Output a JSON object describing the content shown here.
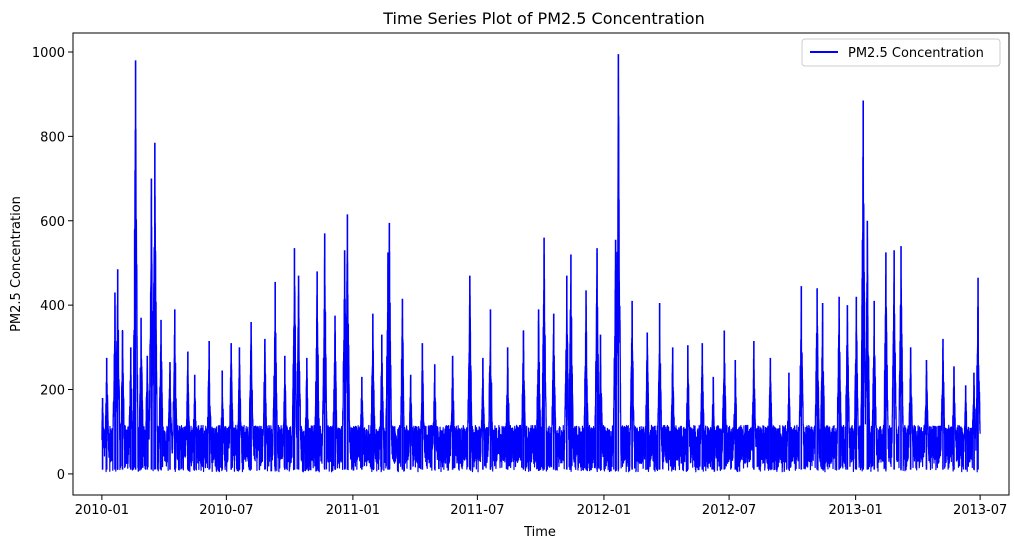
{
  "chart_data": {
    "type": "line",
    "title": "Time Series Plot of PM2.5 Concentration",
    "xlabel": "Time",
    "ylabel": "PM2.5 Concentration",
    "xlim": [
      "2009-11-20",
      "2013-08-12"
    ],
    "ylim": [
      -50,
      1045
    ],
    "x_ticks": [
      "2010-01",
      "2010-07",
      "2011-01",
      "2011-07",
      "2012-01",
      "2012-07",
      "2013-01",
      "2013-07"
    ],
    "y_ticks": [
      0,
      200,
      400,
      600,
      800,
      1000
    ],
    "grid": false,
    "legend_position": "top-right",
    "series": [
      {
        "name": "PM2.5 Concentration",
        "color": "#0000ff",
        "x_start": "2010-01-01",
        "x_end": "2013-07-01",
        "peaks": [
          [
            "2010-01-02",
            180
          ],
          [
            "2010-01-08",
            275
          ],
          [
            "2010-01-20",
            430
          ],
          [
            "2010-01-24",
            485
          ],
          [
            "2010-01-31",
            340
          ],
          [
            "2010-02-12",
            300
          ],
          [
            "2010-02-19",
            980
          ],
          [
            "2010-02-27",
            370
          ],
          [
            "2010-03-08",
            280
          ],
          [
            "2010-03-14",
            700
          ],
          [
            "2010-03-19",
            785
          ],
          [
            "2010-03-28",
            365
          ],
          [
            "2010-04-10",
            265
          ],
          [
            "2010-04-17",
            390
          ],
          [
            "2010-05-06",
            290
          ],
          [
            "2010-05-16",
            235
          ],
          [
            "2010-06-06",
            315
          ],
          [
            "2010-06-25",
            245
          ],
          [
            "2010-07-08",
            310
          ],
          [
            "2010-07-20",
            300
          ],
          [
            "2010-08-06",
            360
          ],
          [
            "2010-08-26",
            320
          ],
          [
            "2010-09-10",
            455
          ],
          [
            "2010-09-24",
            280
          ],
          [
            "2010-10-08",
            535
          ],
          [
            "2010-10-14",
            470
          ],
          [
            "2010-10-26",
            275
          ],
          [
            "2010-11-10",
            480
          ],
          [
            "2010-11-21",
            570
          ],
          [
            "2010-12-06",
            375
          ],
          [
            "2010-12-20",
            530
          ],
          [
            "2010-12-24",
            615
          ],
          [
            "2011-01-14",
            230
          ],
          [
            "2011-01-30",
            380
          ],
          [
            "2011-02-12",
            330
          ],
          [
            "2011-02-21",
            525
          ],
          [
            "2011-02-23",
            595
          ],
          [
            "2011-03-14",
            415
          ],
          [
            "2011-03-26",
            235
          ],
          [
            "2011-04-12",
            310
          ],
          [
            "2011-04-30",
            260
          ],
          [
            "2011-05-26",
            280
          ],
          [
            "2011-06-20",
            470
          ],
          [
            "2011-07-09",
            275
          ],
          [
            "2011-07-20",
            390
          ],
          [
            "2011-08-14",
            300
          ],
          [
            "2011-09-06",
            340
          ],
          [
            "2011-09-28",
            390
          ],
          [
            "2011-10-06",
            560
          ],
          [
            "2011-10-20",
            380
          ],
          [
            "2011-11-08",
            470
          ],
          [
            "2011-11-14",
            520
          ],
          [
            "2011-12-06",
            435
          ],
          [
            "2011-12-22",
            535
          ],
          [
            "2011-12-27",
            330
          ],
          [
            "2012-01-18",
            555
          ],
          [
            "2012-01-22",
            995
          ],
          [
            "2012-02-11",
            410
          ],
          [
            "2012-03-04",
            335
          ],
          [
            "2012-03-22",
            405
          ],
          [
            "2012-04-10",
            300
          ],
          [
            "2012-05-02",
            305
          ],
          [
            "2012-05-23",
            310
          ],
          [
            "2012-06-08",
            230
          ],
          [
            "2012-06-24",
            340
          ],
          [
            "2012-07-10",
            270
          ],
          [
            "2012-08-06",
            315
          ],
          [
            "2012-08-30",
            275
          ],
          [
            "2012-09-26",
            240
          ],
          [
            "2012-10-14",
            445
          ],
          [
            "2012-11-06",
            440
          ],
          [
            "2012-11-14",
            405
          ],
          [
            "2012-12-08",
            420
          ],
          [
            "2012-12-20",
            400
          ],
          [
            "2013-01-02",
            420
          ],
          [
            "2013-01-12",
            885
          ],
          [
            "2013-01-18",
            600
          ],
          [
            "2013-01-28",
            410
          ],
          [
            "2013-02-14",
            525
          ],
          [
            "2013-02-26",
            530
          ],
          [
            "2013-03-08",
            540
          ],
          [
            "2013-03-22",
            300
          ],
          [
            "2013-04-14",
            270
          ],
          [
            "2013-05-08",
            320
          ],
          [
            "2013-05-24",
            255
          ],
          [
            "2013-06-10",
            210
          ],
          [
            "2013-06-22",
            240
          ],
          [
            "2013-06-28",
            465
          ]
        ]
      }
    ]
  }
}
